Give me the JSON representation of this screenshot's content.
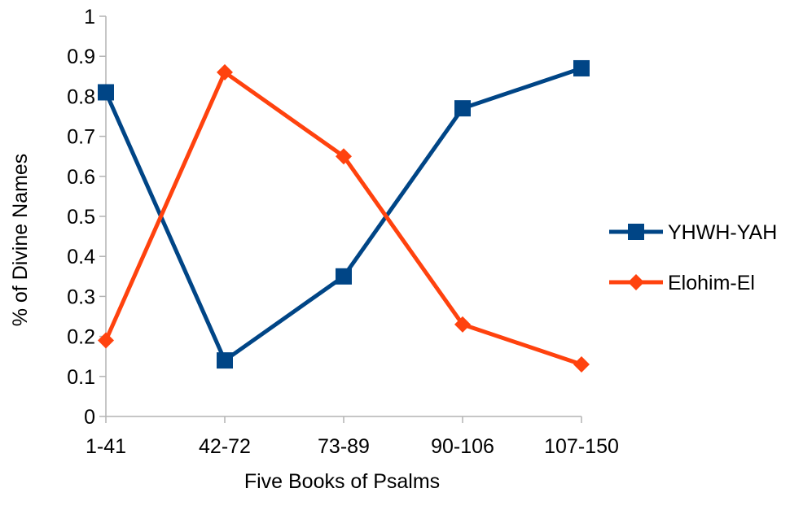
{
  "chart_data": {
    "type": "line",
    "title": "",
    "xlabel": "Five Books of Psalms",
    "ylabel": "% of Divine Names",
    "categories": [
      "1-41",
      "42-72",
      "73-89",
      "90-106",
      "107-150"
    ],
    "ylim": [
      0,
      1
    ],
    "yticks": [
      "0",
      "0.1",
      "0.2",
      "0.3",
      "0.4",
      "0.5",
      "0.6",
      "0.7",
      "0.8",
      "0.9",
      "1"
    ],
    "grid": false,
    "legend": "right",
    "series": [
      {
        "name": "YHWH-YAH",
        "color": "#004586",
        "marker": "square",
        "values": [
          0.81,
          0.14,
          0.35,
          0.77,
          0.87
        ]
      },
      {
        "name": "Elohim-El",
        "color": "#ff420e",
        "marker": "diamond",
        "values": [
          0.19,
          0.86,
          0.65,
          0.23,
          0.13
        ]
      }
    ]
  }
}
